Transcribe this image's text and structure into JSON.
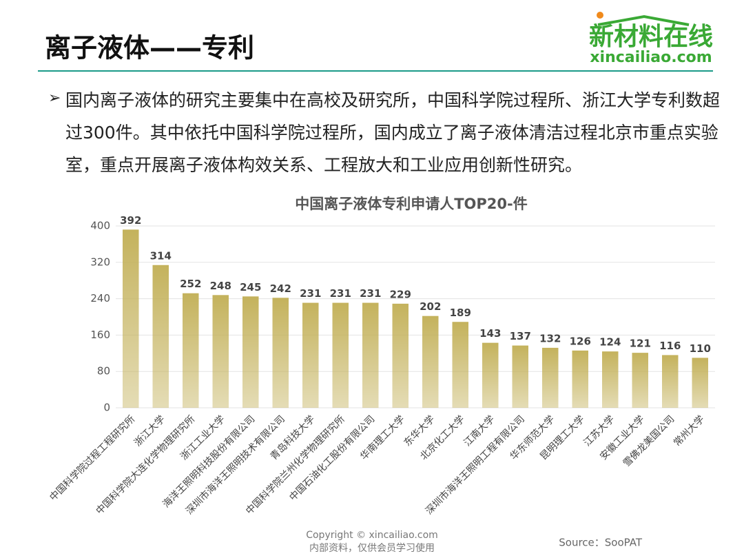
{
  "header": {
    "title": "离子液体——专利"
  },
  "logo": {
    "name": "新材料在线",
    "url": "xincailiao.com"
  },
  "bullet": "国内离子液体的研究主要集中在高校及研究所，中国科学院过程所、浙江大学专利数超过300件。其中依托中国科学院过程所，国内成立了离子液体清洁过程北京市重点实验室，重点开展离子液体构效关系、工程放大和工业应用创新性研究。",
  "chart_data": {
    "type": "bar",
    "title": "中国离子液体专利申请人TOP20-件",
    "categories": [
      "中国科学院过程工程研究所",
      "浙江大学",
      "中国科学院大连化学物理研究所",
      "浙江工业大学",
      "海洋王照明科技股份有限公司",
      "深圳市海洋王照明技术有限公司",
      "青岛科技大学",
      "中国科学院兰州化学物理研究所",
      "中国石油化工股份有限公司",
      "华南理工大学",
      "东华大学",
      "北京化工大学",
      "江南大学",
      "深圳市海洋王照明工程有限公司",
      "华东师范大学",
      "昆明理工大学",
      "江苏大学",
      "安徽工业大学",
      "雪佛龙美国公司",
      "常州大学"
    ],
    "values": [
      392,
      314,
      252,
      248,
      245,
      242,
      231,
      231,
      231,
      229,
      202,
      189,
      143,
      137,
      132,
      126,
      124,
      121,
      116,
      110
    ],
    "color": "#c4b25c",
    "ylim": [
      0,
      400
    ],
    "yticks": [
      0,
      80,
      160,
      240,
      320,
      400
    ],
    "grid": true
  },
  "footer": {
    "copyright": "Copyright © xincailiao.com",
    "note": "内部资料，仅供会员学习使用",
    "source": "Source：SooPAT"
  }
}
